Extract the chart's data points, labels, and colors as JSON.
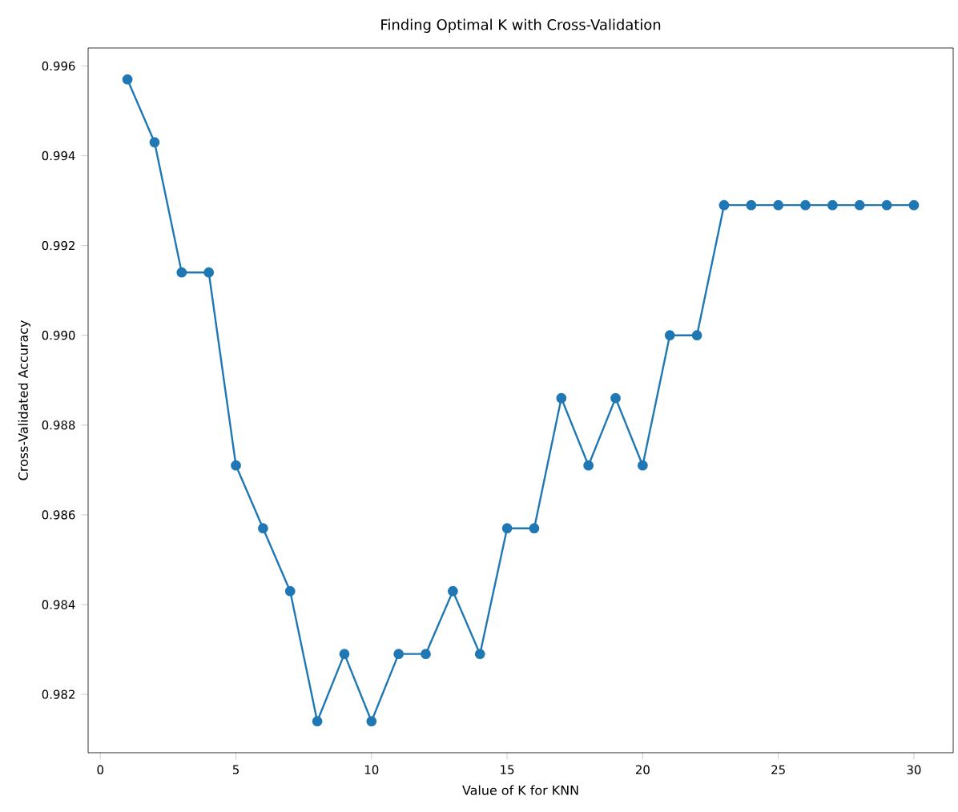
{
  "chart_data": {
    "type": "line",
    "title": "Finding Optimal K with Cross-Validation",
    "xlabel": "Value of K for KNN",
    "ylabel": "Cross-Validated Accuracy",
    "x": [
      1,
      2,
      3,
      4,
      5,
      6,
      7,
      8,
      9,
      10,
      11,
      12,
      13,
      14,
      15,
      16,
      17,
      18,
      19,
      20,
      21,
      22,
      23,
      24,
      25,
      26,
      27,
      28,
      29,
      30
    ],
    "values": [
      0.9957,
      0.9943,
      0.9914,
      0.9914,
      0.9871,
      0.9857,
      0.9843,
      0.9814,
      0.9829,
      0.9814,
      0.9829,
      0.9829,
      0.9843,
      0.9829,
      0.9857,
      0.9857,
      0.9886,
      0.9871,
      0.9886,
      0.9871,
      0.99,
      0.99,
      0.9929,
      0.9929,
      0.9929,
      0.9929,
      0.9929,
      0.9929,
      0.9929,
      0.9929
    ],
    "color": "#1f77b4",
    "marker": "circle",
    "line_style": "solid",
    "xlim": [
      -0.45,
      31.45
    ],
    "ylim": [
      0.9807,
      0.9964
    ],
    "xticks": [
      0,
      5,
      10,
      15,
      20,
      25,
      30
    ],
    "yticks": [
      0.982,
      0.984,
      0.986,
      0.988,
      {
        "value": 0.99,
        "label": "0.990"
      },
      0.992,
      0.994,
      0.996
    ]
  }
}
